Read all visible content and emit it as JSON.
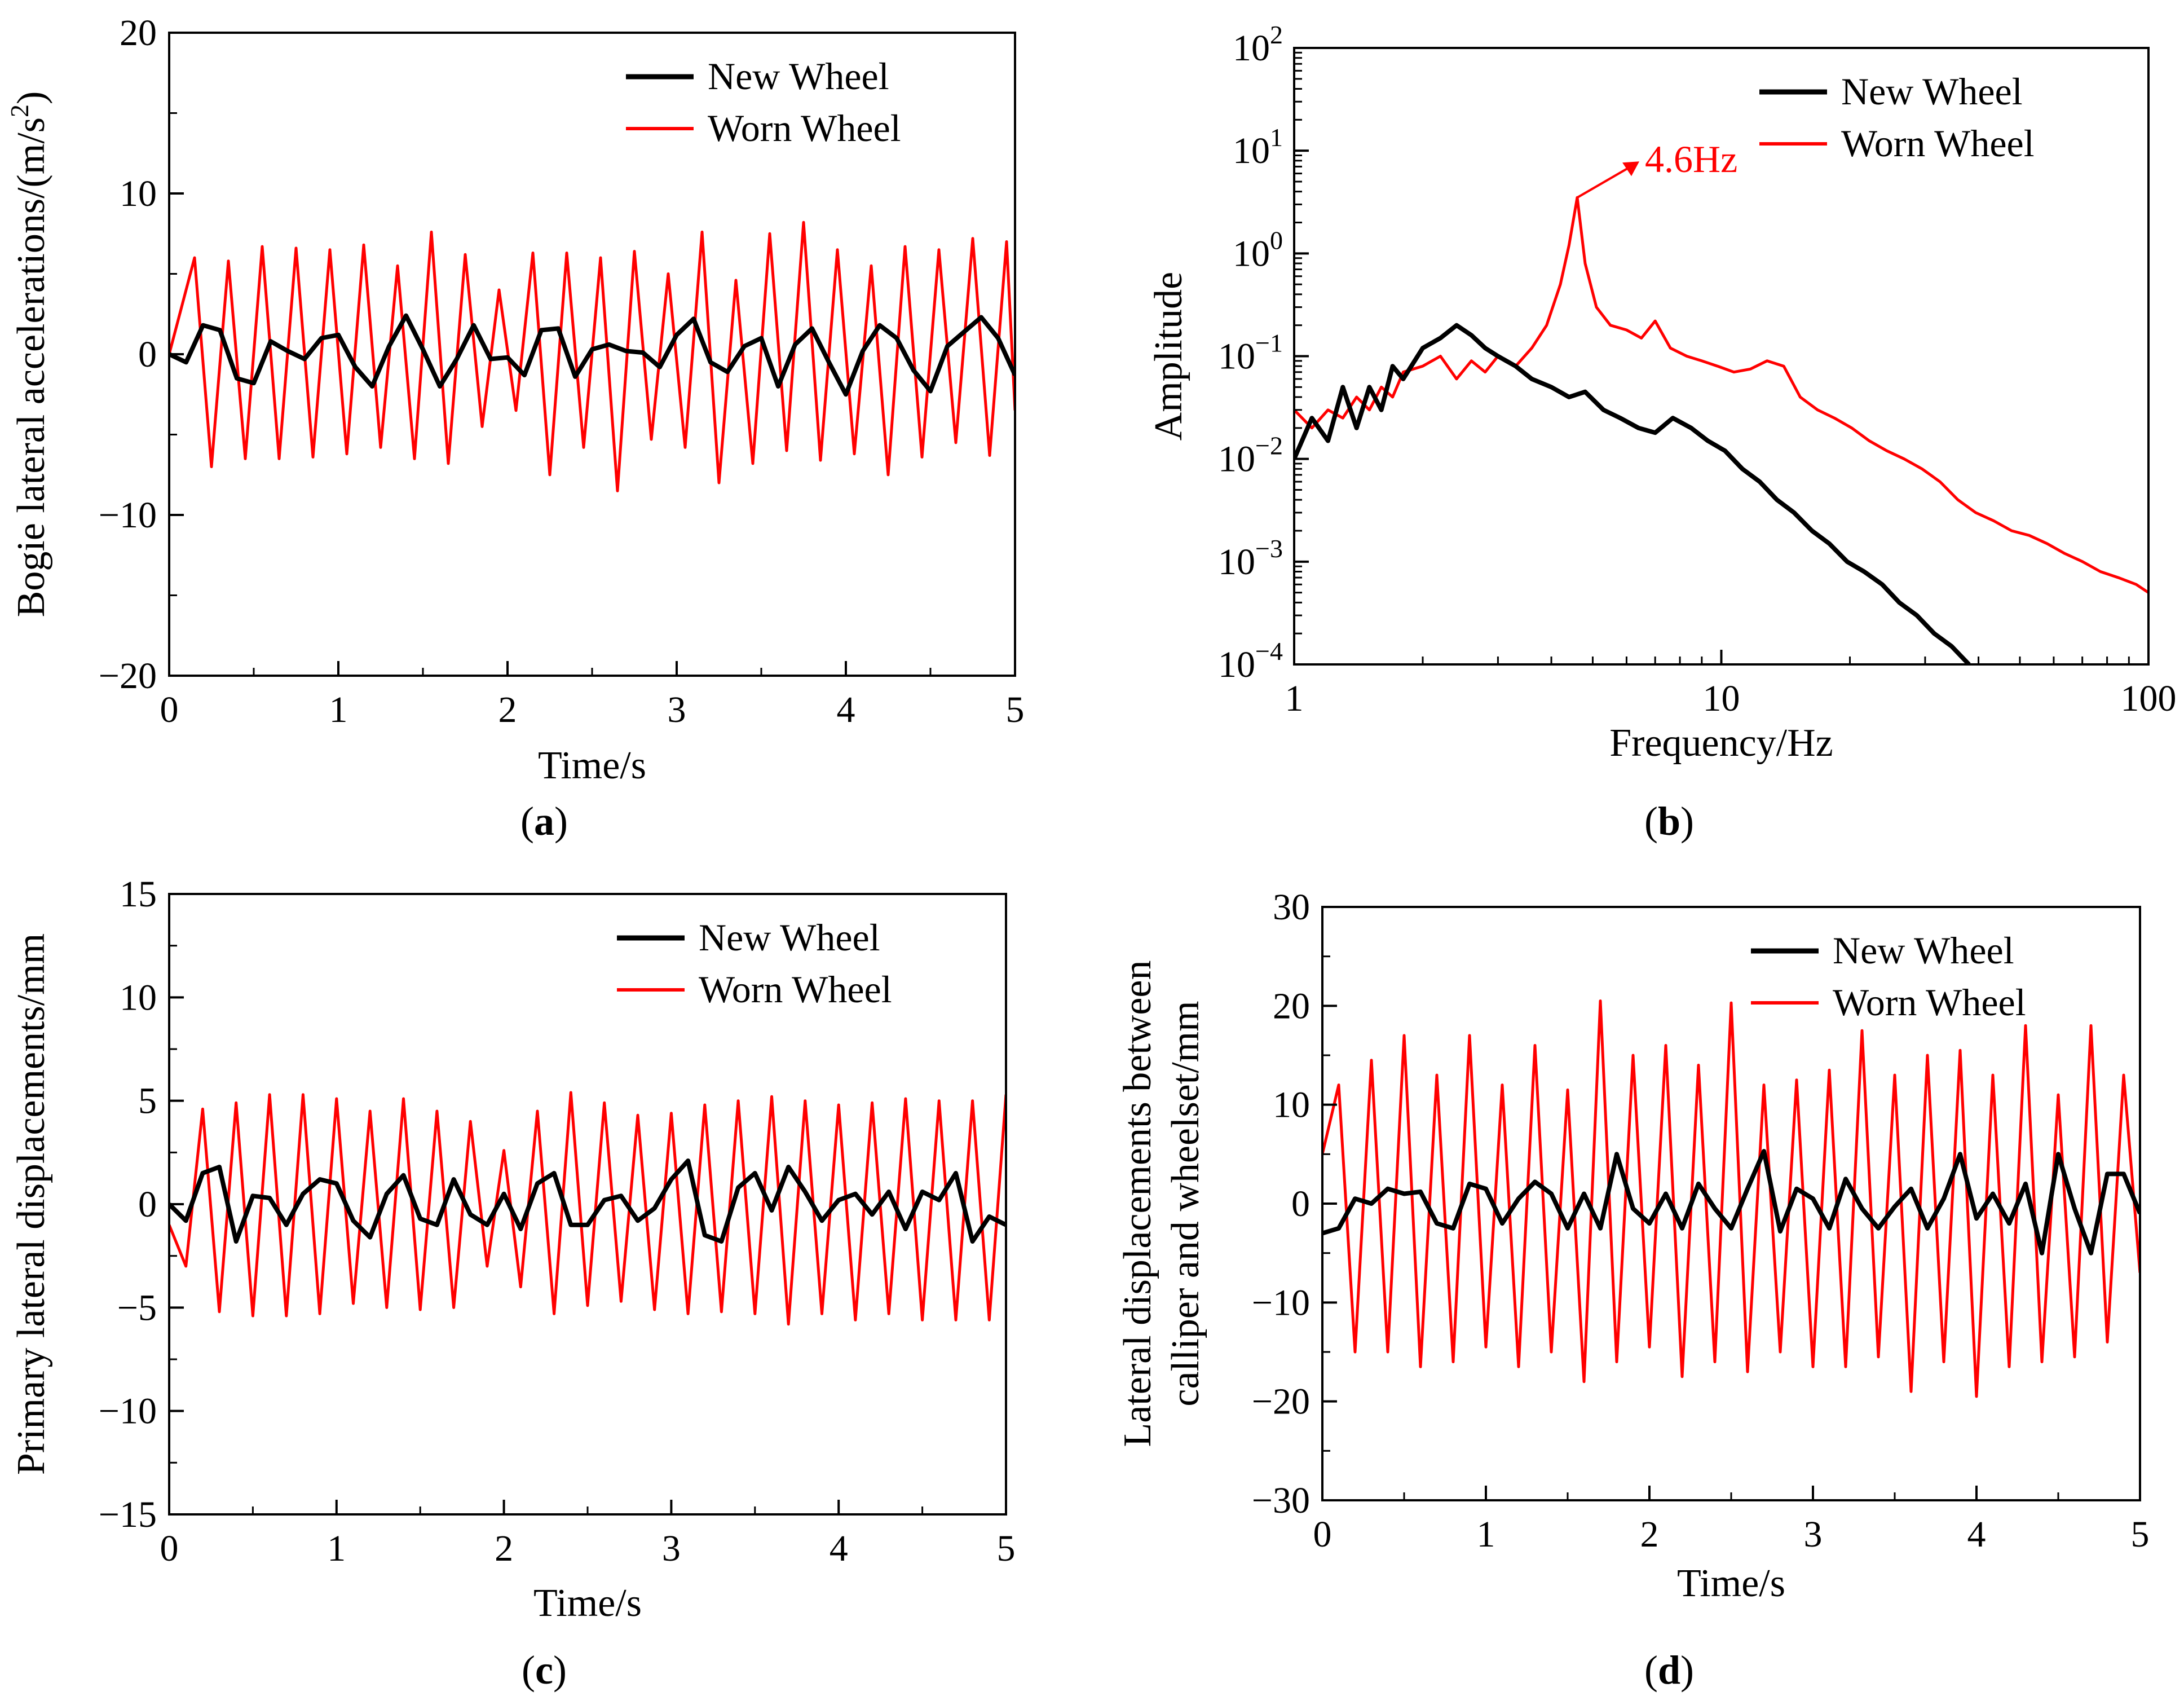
{
  "colors": {
    "new_wheel": "#000000",
    "worn_wheel": "#ff0000",
    "axis": "#000000"
  },
  "chart_data": [
    {
      "id": "a",
      "type": "line",
      "caption": {
        "open": "(",
        "letter": "a",
        "close": ")"
      },
      "xlabel": "Time/s",
      "ylabel_main": "Bogie lateral accelerations/(m/s",
      "ylabel_sup": "2",
      "ylabel_end": ")",
      "xlim": [
        0,
        5
      ],
      "ylim": [
        -20,
        20
      ],
      "xticks": [
        0,
        1,
        2,
        3,
        4,
        5
      ],
      "xtick_labels": [
        "0",
        "1",
        "2",
        "3",
        "4",
        "5"
      ],
      "yticks": [
        -20,
        -10,
        0,
        10,
        20
      ],
      "ytick_labels": [
        "−20",
        "−10",
        "0",
        "10",
        "20"
      ],
      "legend": {
        "placement": "top-right",
        "entries": [
          "New Wheel",
          "Worn Wheel"
        ]
      },
      "series": [
        {
          "name": "New Wheel",
          "x": [
            0,
            0.1,
            0.2,
            0.3,
            0.4,
            0.5,
            0.6,
            0.7,
            0.8,
            0.9,
            1.0,
            1.1,
            1.2,
            1.3,
            1.4,
            1.5,
            1.6,
            1.7,
            1.8,
            1.9,
            2.0,
            2.1,
            2.2,
            2.3,
            2.4,
            2.5,
            2.6,
            2.7,
            2.8,
            2.9,
            3.0,
            3.1,
            3.2,
            3.3,
            3.4,
            3.5,
            3.6,
            3.7,
            3.8,
            3.9,
            4.0,
            4.1,
            4.2,
            4.3,
            4.4,
            4.5,
            4.6,
            4.7,
            4.8,
            4.9,
            5.0
          ],
          "values": [
            0,
            -0.5,
            1.8,
            1.5,
            -1.5,
            -1.8,
            0.8,
            0.2,
            -0.3,
            1.0,
            1.2,
            -0.8,
            -2.0,
            0.5,
            2.4,
            0.3,
            -2.0,
            -0.3,
            1.8,
            -0.3,
            -0.2,
            -1.3,
            1.5,
            1.6,
            -1.4,
            0.3,
            0.6,
            0.2,
            0.1,
            -0.8,
            1.2,
            2.2,
            -0.5,
            -1.1,
            0.5,
            1.0,
            -2.0,
            0.6,
            1.6,
            -0.5,
            -2.5,
            0.2,
            1.8,
            1.0,
            -1.0,
            -2.3,
            0.5,
            1.4,
            2.3,
            1.0,
            -1.3
          ]
        },
        {
          "name": "Worn Wheel",
          "x": [
            0,
            0.15,
            0.25,
            0.35,
            0.45,
            0.55,
            0.65,
            0.75,
            0.85,
            0.95,
            1.05,
            1.15,
            1.25,
            1.35,
            1.45,
            1.55,
            1.65,
            1.75,
            1.85,
            1.95,
            2.05,
            2.15,
            2.25,
            2.35,
            2.45,
            2.55,
            2.65,
            2.75,
            2.85,
            2.95,
            3.05,
            3.15,
            3.25,
            3.35,
            3.45,
            3.55,
            3.65,
            3.75,
            3.85,
            3.95,
            4.05,
            4.15,
            4.25,
            4.35,
            4.45,
            4.55,
            4.65,
            4.75,
            4.85,
            4.95,
            5.0
          ],
          "values": [
            0,
            6.0,
            -7.0,
            5.8,
            -6.5,
            6.7,
            -6.5,
            6.6,
            -6.4,
            6.5,
            -6.2,
            6.8,
            -5.8,
            5.5,
            -6.5,
            7.6,
            -6.8,
            6.2,
            -4.5,
            4.0,
            -3.5,
            6.3,
            -7.5,
            6.3,
            -5.8,
            6.0,
            -8.5,
            6.4,
            -5.3,
            5.0,
            -5.8,
            7.6,
            -8.0,
            4.6,
            -6.8,
            7.5,
            -6.0,
            8.2,
            -6.6,
            6.5,
            -6.2,
            5.5,
            -7.5,
            6.7,
            -6.4,
            6.5,
            -5.5,
            7.2,
            -6.3,
            7.0,
            -3.5
          ]
        }
      ]
    },
    {
      "id": "b",
      "type": "line",
      "caption": {
        "open": "(",
        "letter": "b",
        "close": ")"
      },
      "xlabel": "Frequency/Hz",
      "ylabel_main": "Amplitude",
      "xscale": "log",
      "yscale": "log",
      "xlim": [
        1,
        100
      ],
      "ylim": [
        0.0001,
        100
      ],
      "xticks": [
        1,
        10,
        100
      ],
      "xtick_labels": [
        "1",
        "10",
        "100"
      ],
      "yticks": [
        0.0001,
        0.001,
        0.01,
        0.1,
        1,
        10,
        100
      ],
      "ytick_base": "10",
      "ytick_exps": [
        "−4",
        "−3",
        "−2",
        "−1",
        "0",
        "1",
        "2"
      ],
      "annotation": {
        "text": "4.6Hz",
        "x": 4.6,
        "y": 3.5
      },
      "legend": {
        "placement": "top-right",
        "entries": [
          "New Wheel",
          "Worn Wheel"
        ]
      },
      "series": [
        {
          "name": "New Wheel",
          "x": [
            1,
            1.1,
            1.2,
            1.3,
            1.4,
            1.5,
            1.6,
            1.7,
            1.8,
            2.0,
            2.2,
            2.4,
            2.6,
            2.8,
            3.0,
            3.3,
            3.6,
            4.0,
            4.4,
            4.8,
            5.3,
            5.8,
            6.4,
            7.0,
            7.7,
            8.5,
            9.3,
            10.2,
            11.2,
            12.3,
            13.5,
            14.8,
            16.3,
            17.9,
            19.7,
            21.6,
            23.8,
            26.1,
            28.7,
            31.5,
            34.6,
            38.0
          ],
          "values": [
            0.01,
            0.025,
            0.015,
            0.05,
            0.02,
            0.05,
            0.03,
            0.08,
            0.06,
            0.12,
            0.15,
            0.2,
            0.16,
            0.12,
            0.1,
            0.08,
            0.06,
            0.05,
            0.04,
            0.045,
            0.03,
            0.025,
            0.02,
            0.018,
            0.025,
            0.02,
            0.015,
            0.012,
            0.008,
            0.006,
            0.004,
            0.003,
            0.002,
            0.0015,
            0.001,
            0.0008,
            0.0006,
            0.0004,
            0.0003,
            0.0002,
            0.00015,
            0.0001
          ]
        },
        {
          "name": "Worn Wheel",
          "x": [
            1,
            1.1,
            1.2,
            1.3,
            1.4,
            1.5,
            1.6,
            1.7,
            1.8,
            2.0,
            2.2,
            2.4,
            2.6,
            2.8,
            3.0,
            3.3,
            3.6,
            3.9,
            4.2,
            4.4,
            4.6,
            4.8,
            5.1,
            5.5,
            6.0,
            6.5,
            7.0,
            7.6,
            8.3,
            9.0,
            9.8,
            10.7,
            11.7,
            12.8,
            14.0,
            15.3,
            16.8,
            18.4,
            20.2,
            22.2,
            24.4,
            26.8,
            29.5,
            32.5,
            35.8,
            39.4,
            43.4,
            47.8,
            52.6,
            57.9,
            63.7,
            70.1,
            77.2,
            85.0,
            93.6,
            100
          ],
          "values": [
            0.03,
            0.02,
            0.03,
            0.025,
            0.04,
            0.03,
            0.05,
            0.04,
            0.07,
            0.08,
            0.1,
            0.06,
            0.09,
            0.07,
            0.1,
            0.08,
            0.12,
            0.2,
            0.5,
            1.2,
            3.5,
            0.8,
            0.3,
            0.2,
            0.18,
            0.15,
            0.22,
            0.12,
            0.1,
            0.09,
            0.08,
            0.07,
            0.075,
            0.09,
            0.08,
            0.04,
            0.03,
            0.025,
            0.02,
            0.015,
            0.012,
            0.01,
            0.008,
            0.006,
            0.004,
            0.003,
            0.0025,
            0.002,
            0.0018,
            0.0015,
            0.0012,
            0.001,
            0.0008,
            0.0007,
            0.0006,
            0.0005
          ]
        }
      ]
    },
    {
      "id": "c",
      "type": "line",
      "caption": {
        "open": "(",
        "letter": "c",
        "close": ")"
      },
      "xlabel": "Time/s",
      "ylabel_main": "Primary lateral displacements/mm",
      "xlim": [
        0,
        5
      ],
      "ylim": [
        -15,
        15
      ],
      "xticks": [
        0,
        1,
        2,
        3,
        4,
        5
      ],
      "xtick_labels": [
        "0",
        "1",
        "2",
        "3",
        "4",
        "5"
      ],
      "yticks": [
        -15,
        -10,
        -5,
        0,
        5,
        10,
        15
      ],
      "ytick_labels": [
        "−15",
        "−10",
        "−5",
        "0",
        "5",
        "10",
        "15"
      ],
      "legend": {
        "placement": "top-right",
        "entries": [
          "New Wheel",
          "Worn Wheel"
        ]
      },
      "series": [
        {
          "name": "New Wheel",
          "x": [
            0,
            0.1,
            0.2,
            0.3,
            0.4,
            0.5,
            0.6,
            0.7,
            0.8,
            0.9,
            1.0,
            1.1,
            1.2,
            1.3,
            1.4,
            1.5,
            1.6,
            1.7,
            1.8,
            1.9,
            2.0,
            2.1,
            2.2,
            2.3,
            2.4,
            2.5,
            2.6,
            2.7,
            2.8,
            2.9,
            3.0,
            3.1,
            3.2,
            3.3,
            3.4,
            3.5,
            3.6,
            3.7,
            3.8,
            3.9,
            4.0,
            4.1,
            4.2,
            4.3,
            4.4,
            4.5,
            4.6,
            4.7,
            4.8,
            4.9,
            5.0
          ],
          "values": [
            0,
            -0.8,
            1.5,
            1.8,
            -1.8,
            0.4,
            0.3,
            -1.0,
            0.5,
            1.2,
            1.0,
            -0.8,
            -1.6,
            0.5,
            1.4,
            -0.7,
            -1.0,
            1.2,
            -0.5,
            -1.0,
            0.5,
            -1.2,
            1.0,
            1.5,
            -1.0,
            -1.0,
            0.2,
            0.4,
            -0.8,
            -0.2,
            1.2,
            2.1,
            -1.5,
            -1.8,
            0.8,
            1.5,
            -0.3,
            1.8,
            0.6,
            -0.8,
            0.2,
            0.5,
            -0.5,
            0.6,
            -1.2,
            0.6,
            0.2,
            1.5,
            -1.8,
            -0.6,
            -1.0
          ]
        },
        {
          "name": "Worn Wheel",
          "x": [
            0,
            0.1,
            0.2,
            0.3,
            0.4,
            0.5,
            0.6,
            0.7,
            0.8,
            0.9,
            1.0,
            1.1,
            1.2,
            1.3,
            1.4,
            1.5,
            1.6,
            1.7,
            1.8,
            1.9,
            2.0,
            2.1,
            2.2,
            2.3,
            2.4,
            2.5,
            2.6,
            2.7,
            2.8,
            2.9,
            3.0,
            3.1,
            3.2,
            3.3,
            3.4,
            3.5,
            3.6,
            3.7,
            3.8,
            3.9,
            4.0,
            4.1,
            4.2,
            4.3,
            4.4,
            4.5,
            4.6,
            4.7,
            4.8,
            4.9,
            5.0
          ],
          "values": [
            -1.0,
            -3.0,
            4.6,
            -5.2,
            4.9,
            -5.4,
            5.3,
            -5.4,
            5.3,
            -5.3,
            5.1,
            -4.8,
            4.5,
            -5.0,
            5.1,
            -5.1,
            4.5,
            -5.0,
            4.0,
            -3.0,
            2.6,
            -4.0,
            4.5,
            -5.3,
            5.4,
            -4.9,
            4.9,
            -4.7,
            4.3,
            -5.1,
            4.4,
            -5.3,
            4.8,
            -5.2,
            5.0,
            -5.3,
            5.2,
            -5.8,
            5.0,
            -5.3,
            4.8,
            -5.6,
            4.9,
            -5.3,
            5.1,
            -5.6,
            5.0,
            -5.6,
            5.0,
            -5.6,
            5.3
          ]
        }
      ]
    },
    {
      "id": "d",
      "type": "line",
      "caption": {
        "open": "(",
        "letter": "d",
        "close": ")"
      },
      "xlabel": "Time/s",
      "ylabel_main": "Lateral displacements between",
      "ylabel_line2": "calliper and wheelset/mm",
      "xlim": [
        0,
        5
      ],
      "ylim": [
        -30,
        30
      ],
      "xticks": [
        0,
        1,
        2,
        3,
        4,
        5
      ],
      "xtick_labels": [
        "0",
        "1",
        "2",
        "3",
        "4",
        "5"
      ],
      "yticks": [
        -30,
        -20,
        -10,
        0,
        10,
        20,
        30
      ],
      "ytick_labels": [
        "−30",
        "−20",
        "−10",
        "0",
        "10",
        "20",
        "30"
      ],
      "legend": {
        "placement": "top-right",
        "entries": [
          "New Wheel",
          "Worn Wheel"
        ]
      },
      "series": [
        {
          "name": "New Wheel",
          "x": [
            0,
            0.1,
            0.2,
            0.3,
            0.4,
            0.5,
            0.6,
            0.7,
            0.8,
            0.9,
            1.0,
            1.1,
            1.2,
            1.3,
            1.4,
            1.5,
            1.6,
            1.7,
            1.8,
            1.9,
            2.0,
            2.1,
            2.2,
            2.3,
            2.4,
            2.5,
            2.6,
            2.7,
            2.8,
            2.9,
            3.0,
            3.1,
            3.2,
            3.3,
            3.4,
            3.5,
            3.6,
            3.7,
            3.8,
            3.9,
            4.0,
            4.1,
            4.2,
            4.3,
            4.4,
            4.5,
            4.6,
            4.7,
            4.8,
            4.9,
            5.0
          ],
          "values": [
            -3.0,
            -2.5,
            0.5,
            0.0,
            1.5,
            1.0,
            1.2,
            -2.0,
            -2.5,
            2.0,
            1.5,
            -2.0,
            0.5,
            2.2,
            1.0,
            -2.5,
            1.0,
            -2.5,
            5.0,
            -0.5,
            -2.0,
            1.0,
            -2.5,
            2.0,
            -0.5,
            -2.5,
            1.5,
            5.3,
            -2.8,
            1.5,
            0.5,
            -2.5,
            2.5,
            -0.5,
            -2.5,
            -0.3,
            1.5,
            -2.5,
            0.5,
            5.0,
            -1.5,
            1.0,
            -2.0,
            2.0,
            -5.0,
            5.0,
            -0.5,
            -5.0,
            3.0,
            3.0,
            -1.0
          ]
        },
        {
          "name": "Worn Wheel",
          "x": [
            0,
            0.1,
            0.2,
            0.3,
            0.4,
            0.5,
            0.6,
            0.7,
            0.8,
            0.9,
            1.0,
            1.1,
            1.2,
            1.3,
            1.4,
            1.5,
            1.6,
            1.7,
            1.8,
            1.9,
            2.0,
            2.1,
            2.2,
            2.3,
            2.4,
            2.5,
            2.6,
            2.7,
            2.8,
            2.9,
            3.0,
            3.1,
            3.2,
            3.3,
            3.4,
            3.5,
            3.6,
            3.7,
            3.8,
            3.9,
            4.0,
            4.1,
            4.2,
            4.3,
            4.4,
            4.5,
            4.6,
            4.7,
            4.8,
            4.9,
            5.0
          ],
          "values": [
            5.0,
            12.0,
            -15.0,
            14.5,
            -15.0,
            17.0,
            -16.5,
            13.0,
            -16.0,
            17.0,
            -14.5,
            12.0,
            -16.5,
            16.0,
            -15.0,
            11.5,
            -18.0,
            20.5,
            -16.0,
            15.0,
            -14.5,
            16.0,
            -17.5,
            14.0,
            -16.0,
            20.3,
            -17.0,
            12.0,
            -15.0,
            12.5,
            -16.5,
            13.5,
            -16.5,
            17.5,
            -15.5,
            13.0,
            -19.0,
            15.0,
            -16.0,
            15.5,
            -19.5,
            13.0,
            -16.5,
            18.0,
            -16.0,
            11.0,
            -15.5,
            18.0,
            -14.0,
            13.0,
            -7.0
          ]
        }
      ]
    }
  ]
}
